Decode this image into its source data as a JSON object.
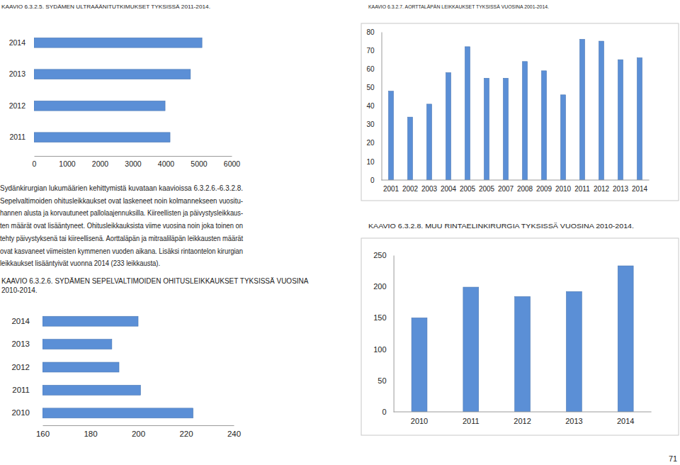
{
  "chart_data": [
    {
      "type": "bar",
      "orientation": "horizontal",
      "title": "KAAVIO 6.3.2.5. SYDÄMEN ULTRAÄÄNITUTKIMUKSET TYKSISSÄ 2011-2014.",
      "categories": [
        "2014",
        "2013",
        "2012",
        "2011"
      ],
      "values": [
        5100,
        4750,
        3980,
        4130
      ],
      "color": "#5b8fd6",
      "xlim": [
        0,
        6000
      ],
      "xticks": [
        0,
        1000,
        2000,
        3000,
        4000,
        5000,
        6000
      ],
      "grid": false
    },
    {
      "type": "bar",
      "orientation": "horizontal",
      "title": "KAAVIO 6.3.2.6. SYDÄMEN SEPELVALTIMOIDEN OHITUSLEIKKAUKSET TYKSISSÄ VUOSINA 2010-2014.",
      "categories": [
        "2014",
        "2013",
        "2012",
        "2011",
        "2010"
      ],
      "values": [
        200,
        189,
        192,
        201,
        223
      ],
      "color": "#5b8fd6",
      "xlim": [
        160,
        240
      ],
      "xticks": [
        160,
        180,
        200,
        220,
        240
      ],
      "grid": false
    },
    {
      "type": "bar",
      "title": "KAAVIO 6.3.2.7. AORTTALÄPÄN LEIKKAUKSET TYKSISSÄ VUOSINA 2001-2014.",
      "categories": [
        "2001",
        "2002",
        "2003",
        "2004",
        "2005",
        "2005",
        "2007",
        "2008",
        "2009",
        "2010",
        "2011",
        "2012",
        "2013",
        "2014"
      ],
      "values": [
        48,
        34,
        41,
        58,
        72,
        55,
        55,
        64,
        59,
        46,
        76,
        75,
        65,
        66
      ],
      "color": "#5b8fd6",
      "ylim": [
        0,
        80
      ],
      "yticks": [
        0,
        10,
        20,
        30,
        40,
        50,
        60,
        70,
        80
      ],
      "grid": false
    },
    {
      "type": "bar",
      "title": "KAAVIO 6.3.2.8. MUU RINTAELINKIRURGIA TYKSISSÄ VUOSINA 2010-2014.",
      "categories": [
        "2010",
        "2011",
        "2012",
        "2013",
        "2014"
      ],
      "values": [
        150,
        199,
        184,
        192,
        233
      ],
      "color": "#5b8fd6",
      "ylim": [
        0,
        250
      ],
      "yticks": [
        0,
        50,
        100,
        150,
        200,
        250
      ],
      "grid": false
    }
  ],
  "paragraph": [
    "Sydänkirurgian lukumäärien kehittymistä kuvataan kaavioissa 6.3.2.6.-6.3.2.8.",
    "Sepelvaltimoiden ohitusleikkaukset ovat laskeneet noin kolmannekseen vuositu-",
    "hannen alusta ja korvautuneet pallolaajennuksilla. Kiireellisten ja päivystysleikkaus-",
    "ten määrät ovat lisääntyneet. Ohitusleikkauksista viime vuosina noin joka toinen on",
    "tehty päivystyksenä tai kiireellisenä. Aorttaläpän ja mitraaliläpän leikkausten määrät",
    "ovat kasvaneet viimeisten kymmenen vuoden aikana. Lisäksi rintaontelon kirurgian",
    "leikkaukset lisääntyivät vuonna 2014 (233 leikkausta)."
  ],
  "page_number": "71"
}
